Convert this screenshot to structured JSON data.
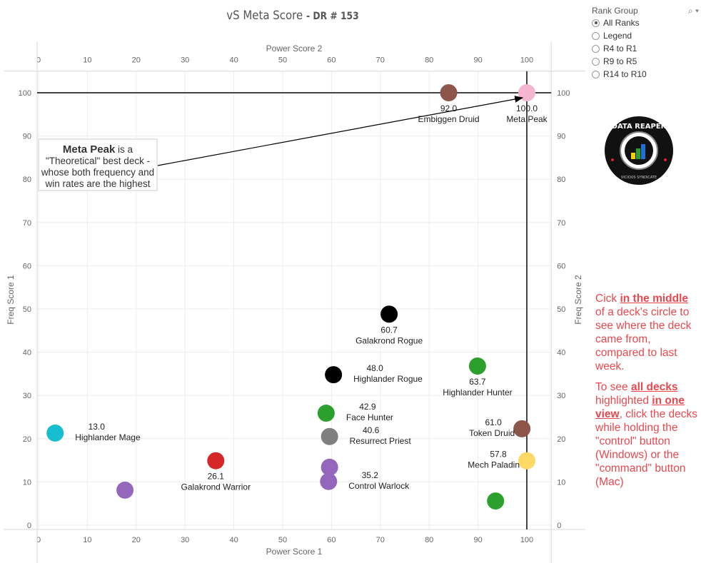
{
  "title": {
    "main": "vS Meta Score",
    "sub": "- DR # 153"
  },
  "filter": {
    "title": "Rank Group",
    "search_icon": "search-icon",
    "dropdown_icon": "caret-down-icon",
    "options": [
      "All Ranks",
      "Legend",
      "R4 to R1",
      "R9 to R5",
      "R14 to R10"
    ],
    "selected": "All Ranks"
  },
  "logo": {
    "text": "DATA REAPER REPORT",
    "subtext": "VICIOUS SYNDICATE PRESENTS"
  },
  "annotation": {
    "bold": "Meta Peak",
    "text": " is a \"Theoretical\" best deck - whose both frequency and win rates are the highest"
  },
  "note": {
    "p1_a": "Cick ",
    "p1_b": "in the middle",
    "p1_c": " of a deck's circle to see where the deck came from, compared to last week.",
    "p2_a": "To see ",
    "p2_b": "all decks ",
    "p2_c": " highlighted ",
    "p2_d": "in one view",
    "p2_e": ", click the decks while holding the \"control\" button (Windows) or the \"command\" button (Mac)"
  },
  "chart_data": {
    "type": "scatter",
    "title": "vS Meta Score - DR # 153",
    "xlabel": "Power Score 1",
    "x2label": "Power Score 2",
    "ylabel": "Freq Score 1",
    "y2label": "Freq Score 2",
    "xlim": [
      0,
      105
    ],
    "ylim": [
      -1,
      105
    ],
    "xticks": [
      0,
      10,
      20,
      30,
      40,
      50,
      60,
      70,
      80,
      90,
      100
    ],
    "yticks": [
      0,
      10,
      20,
      30,
      40,
      50,
      60,
      70,
      80,
      90,
      100
    ],
    "grid": true,
    "reference_lines": {
      "x": 100,
      "y": 100
    },
    "points": [
      {
        "name": "Embiggen Druid",
        "score": "92.0",
        "x": 84,
        "y": 100,
        "color": "#8c564b",
        "label": "below"
      },
      {
        "name": "Meta Peak",
        "score": "100.0",
        "x": 100,
        "y": 100,
        "color": "#f4b6cf",
        "label": "below"
      },
      {
        "name": "Galakrond Rogue",
        "score": "60.7",
        "x": 71.8,
        "y": 48.8,
        "color": "#000000",
        "label": "below"
      },
      {
        "name": "Highlander Rogue",
        "score": "48.0",
        "x": 60.4,
        "y": 34.8,
        "color": "#000000",
        "label": "right"
      },
      {
        "name": "Highlander Hunter",
        "score": "63.7",
        "x": 89.9,
        "y": 36.8,
        "color": "#2ca02c",
        "label": "below"
      },
      {
        "name": "Face Hunter",
        "score": "42.9",
        "x": 58.9,
        "y": 25.9,
        "color": "#2ca02c",
        "label": "right"
      },
      {
        "name": "Resurrect Priest",
        "score": "40.6",
        "x": 59.6,
        "y": 20.5,
        "color": "#7f7f7f",
        "label": "right"
      },
      {
        "name": "Token Druid",
        "score": "61.0",
        "x": 99,
        "y": 22.3,
        "color": "#8c564b",
        "label": "left"
      },
      {
        "name": "Mech Paladin",
        "score": "57.8",
        "x": 100,
        "y": 14.9,
        "color": "#ffd966",
        "label": "left"
      },
      {
        "name": "Highlander Mage",
        "score": "13.0",
        "x": 3.4,
        "y": 21.3,
        "color": "#17becf",
        "label": "right"
      },
      {
        "name": "Galakrond Warrior",
        "score": "26.1",
        "x": 36.3,
        "y": 14.9,
        "color": "#d62728",
        "label": "below"
      },
      {
        "name": "",
        "score": "",
        "x": 59.6,
        "y": 13.4,
        "color": "#9467bd",
        "label": "none"
      },
      {
        "name": "Control Warlock",
        "score": "35.2",
        "x": 59.4,
        "y": 10.1,
        "color": "#9467bd",
        "label": "right"
      },
      {
        "name": "",
        "score": "",
        "x": 17.7,
        "y": 8.1,
        "color": "#9467bd",
        "label": "none"
      },
      {
        "name": "",
        "score": "",
        "x": 93.6,
        "y": 5.6,
        "color": "#2ca02c",
        "label": "none"
      }
    ]
  }
}
